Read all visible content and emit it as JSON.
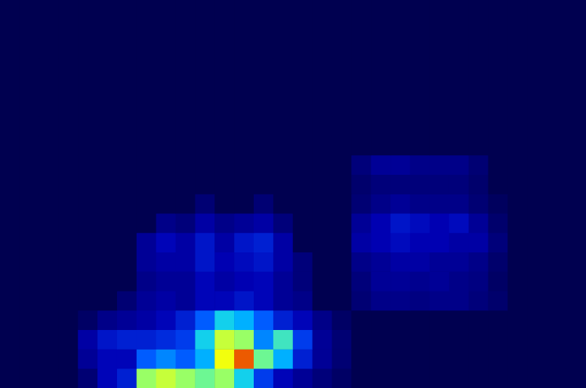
{
  "chart_data": {
    "type": "heatmap",
    "tick_labels": false,
    "zlim": [
      0,
      100
    ],
    "cells": [
      [
        0,
        0,
        0,
        0,
        5,
        15,
        20,
        60,
        65,
        60,
        55,
        60,
        45,
        25,
        15,
        10,
        6,
        3,
        0,
        0,
        0,
        0,
        0,
        0,
        0,
        0,
        0,
        0,
        0,
        0
      ],
      [
        0,
        0,
        0,
        0,
        10,
        15,
        15,
        30,
        35,
        30,
        40,
        70,
        90,
        55,
        40,
        20,
        10,
        5,
        0,
        0,
        0,
        0,
        0,
        0,
        0,
        0,
        0,
        0,
        0,
        0
      ],
      [
        0,
        0,
        0,
        0,
        12,
        18,
        20,
        20,
        22,
        25,
        45,
        65,
        60,
        35,
        50,
        25,
        10,
        5,
        0,
        0,
        0,
        0,
        0,
        0,
        0,
        0,
        0,
        0,
        0,
        0
      ],
      [
        0,
        0,
        0,
        0,
        3,
        8,
        10,
        12,
        15,
        20,
        30,
        45,
        40,
        30,
        20,
        15,
        8,
        3,
        0,
        0,
        0,
        0,
        0,
        0,
        0,
        0,
        0,
        0,
        0,
        0
      ],
      [
        0,
        0,
        0,
        0,
        0,
        0,
        5,
        10,
        12,
        10,
        15,
        15,
        18,
        15,
        10,
        8,
        0,
        0,
        5,
        8,
        8,
        7,
        8,
        8,
        6,
        4,
        0,
        0,
        0,
        0
      ],
      [
        0,
        0,
        0,
        0,
        0,
        0,
        0,
        8,
        10,
        10,
        15,
        12,
        14,
        15,
        10,
        6,
        0,
        0,
        6,
        10,
        10,
        9,
        10,
        8,
        7,
        3,
        0,
        0,
        0,
        0
      ],
      [
        0,
        0,
        0,
        0,
        0,
        0,
        0,
        10,
        12,
        12,
        18,
        14,
        16,
        18,
        12,
        6,
        0,
        0,
        8,
        10,
        12,
        12,
        10,
        10,
        8,
        4,
        0,
        0,
        0,
        0
      ],
      [
        0,
        0,
        0,
        0,
        0,
        0,
        0,
        10,
        15,
        12,
        18,
        12,
        18,
        20,
        12,
        0,
        0,
        0,
        12,
        14,
        16,
        14,
        14,
        12,
        12,
        6,
        0,
        0,
        0,
        0
      ],
      [
        0,
        0,
        0,
        0,
        0,
        0,
        0,
        0,
        8,
        6,
        12,
        8,
        10,
        12,
        6,
        0,
        0,
        0,
        10,
        14,
        18,
        16,
        14,
        16,
        10,
        4,
        0,
        0,
        0,
        0
      ],
      [
        0,
        0,
        0,
        0,
        0,
        0,
        0,
        0,
        0,
        0,
        5,
        0,
        0,
        5,
        0,
        0,
        0,
        0,
        5,
        8,
        10,
        8,
        8,
        8,
        5,
        2,
        0,
        0,
        0,
        0
      ],
      [
        0,
        0,
        0,
        0,
        0,
        0,
        0,
        0,
        0,
        0,
        0,
        0,
        0,
        0,
        0,
        0,
        0,
        0,
        4,
        6,
        6,
        6,
        6,
        6,
        4,
        0,
        0,
        0,
        0,
        0
      ],
      [
        0,
        0,
        0,
        0,
        0,
        0,
        0,
        0,
        0,
        0,
        0,
        0,
        0,
        0,
        0,
        0,
        0,
        0,
        6,
        10,
        10,
        8,
        8,
        8,
        5,
        0,
        0,
        0,
        0,
        0
      ],
      [
        0,
        0,
        0,
        0,
        0,
        0,
        0,
        0,
        0,
        0,
        0,
        0,
        0,
        0,
        0,
        0,
        0,
        0,
        0,
        0,
        0,
        0,
        0,
        0,
        0,
        0,
        0,
        0,
        0,
        0
      ],
      [
        0,
        0,
        0,
        0,
        0,
        0,
        0,
        0,
        0,
        0,
        0,
        0,
        0,
        0,
        0,
        0,
        0,
        0,
        0,
        0,
        0,
        0,
        0,
        0,
        0,
        0,
        0,
        0,
        0,
        0
      ],
      [
        0,
        0,
        0,
        0,
        0,
        0,
        0,
        0,
        0,
        0,
        0,
        0,
        0,
        0,
        0,
        0,
        0,
        0,
        0,
        0,
        0,
        0,
        0,
        0,
        0,
        0,
        0,
        0,
        0,
        0
      ],
      [
        0,
        0,
        0,
        0,
        0,
        0,
        0,
        0,
        0,
        0,
        0,
        0,
        0,
        0,
        0,
        0,
        0,
        0,
        0,
        0,
        0,
        0,
        0,
        0,
        0,
        0,
        0,
        0,
        0,
        0
      ],
      [
        0,
        0,
        0,
        0,
        0,
        0,
        0,
        0,
        0,
        0,
        0,
        0,
        0,
        0,
        0,
        0,
        0,
        0,
        0,
        0,
        0,
        0,
        0,
        0,
        0,
        0,
        0,
        0,
        0,
        0
      ],
      [
        0,
        0,
        0,
        0,
        0,
        0,
        0,
        0,
        0,
        0,
        0,
        0,
        0,
        0,
        0,
        0,
        0,
        0,
        0,
        0,
        0,
        0,
        0,
        0,
        0,
        0,
        0,
        0,
        0,
        0
      ],
      [
        0,
        0,
        0,
        0,
        0,
        0,
        0,
        0,
        0,
        0,
        0,
        0,
        0,
        0,
        0,
        0,
        0,
        0,
        0,
        0,
        0,
        0,
        0,
        0,
        0,
        0,
        0,
        0,
        0,
        0
      ],
      [
        0,
        0,
        0,
        0,
        0,
        0,
        0,
        0,
        0,
        0,
        0,
        0,
        0,
        0,
        0,
        0,
        0,
        0,
        0,
        0,
        0,
        0,
        0,
        0,
        0,
        0,
        0,
        0,
        0,
        0
      ]
    ]
  }
}
